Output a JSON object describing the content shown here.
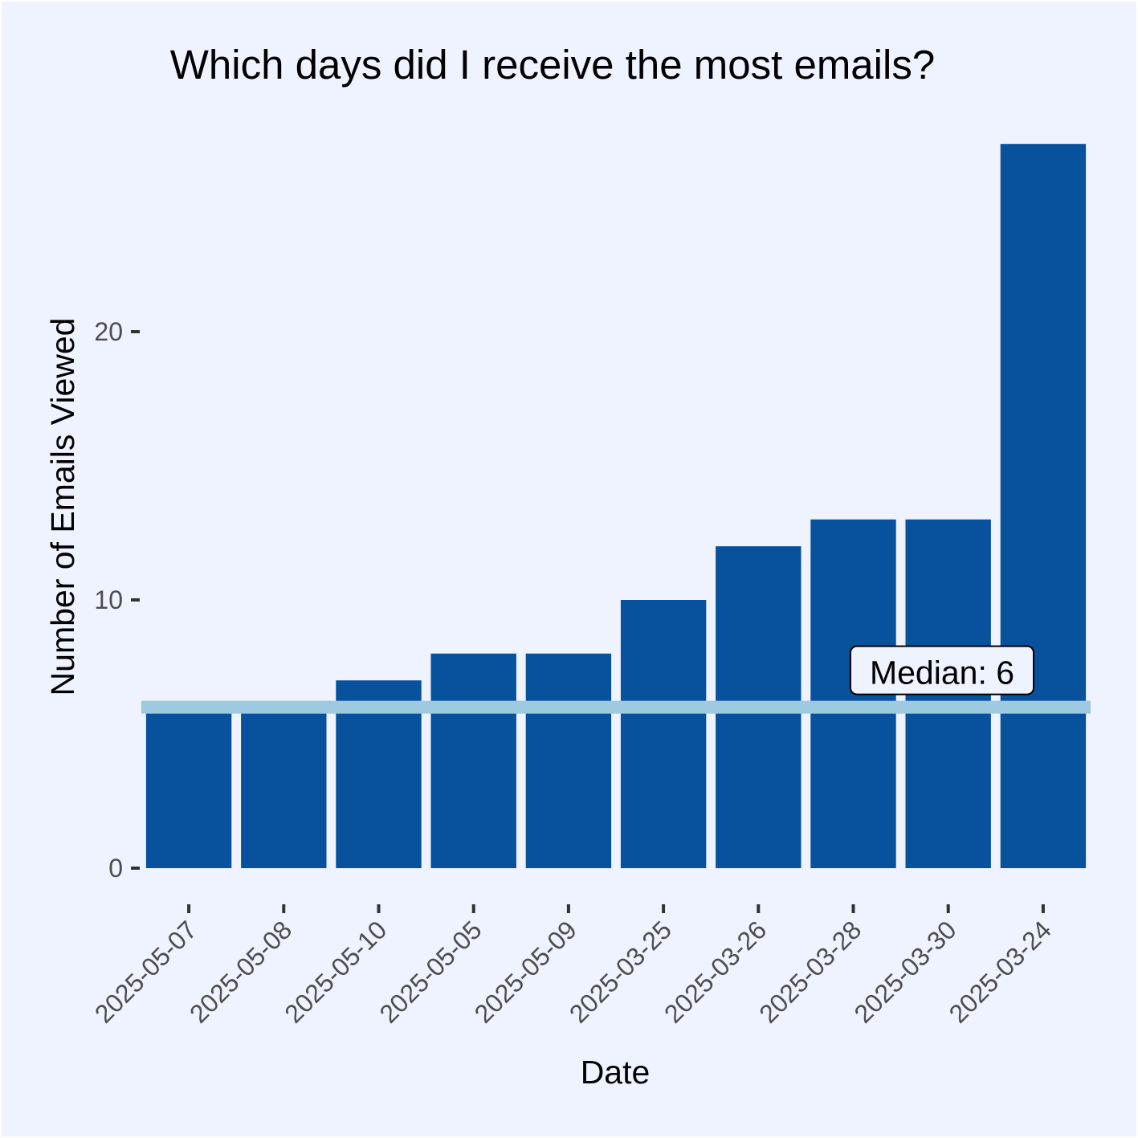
{
  "chart_data": {
    "type": "bar",
    "title": "Which days did I receive the most emails?",
    "xlabel": "Date",
    "ylabel": "Number of Emails Viewed",
    "categories": [
      "2025-05-07",
      "2025-05-08",
      "2025-05-10",
      "2025-05-05",
      "2025-05-09",
      "2025-03-25",
      "2025-03-26",
      "2025-03-28",
      "2025-03-30",
      "2025-03-24"
    ],
    "values": [
      6,
      6,
      7,
      8,
      8,
      10,
      12,
      13,
      13,
      27
    ],
    "ylim": [
      0,
      27
    ],
    "yticks": [
      0,
      10,
      20
    ],
    "grid": false,
    "bar_color": "#08519c",
    "median": {
      "value": 6,
      "label": "Median: 6",
      "color": "#9ecae1"
    },
    "background": "#eff2ff"
  }
}
